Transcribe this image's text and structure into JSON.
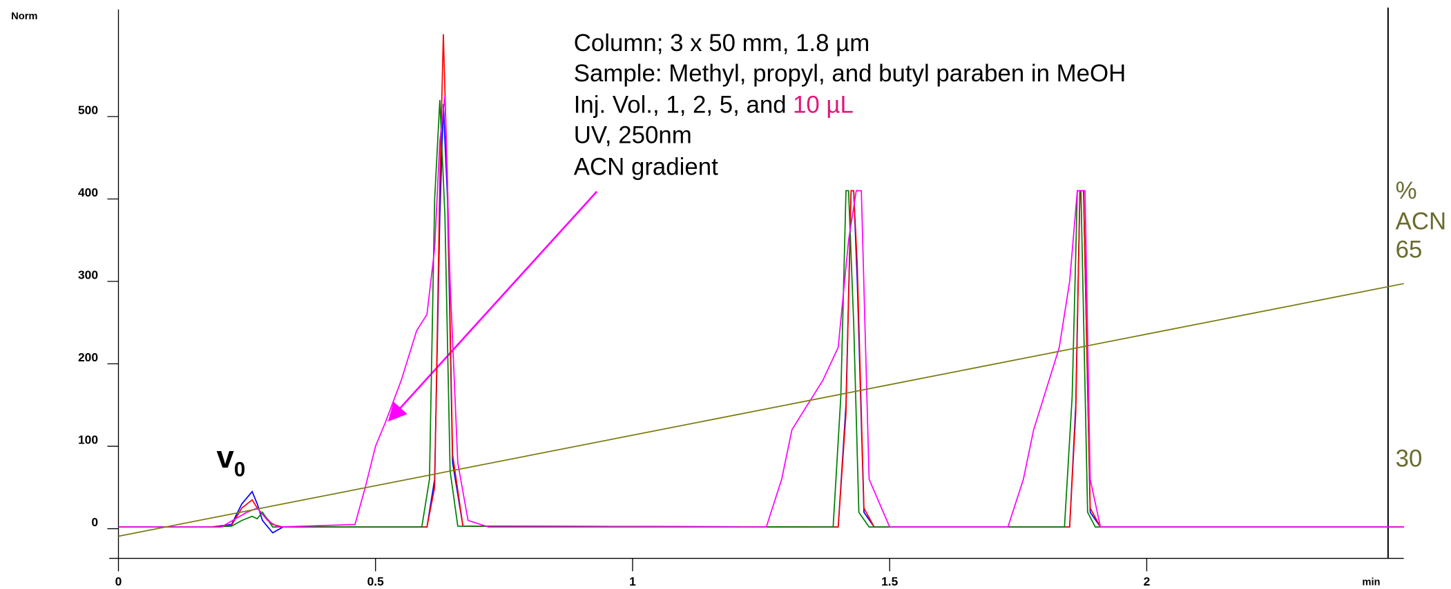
{
  "chart_data": {
    "type": "line",
    "y_label": "Norm",
    "x_label": "min",
    "annotation_lines": [
      "Column; 3 x 50 mm, 1.8 µm",
      "Sample: Methyl, propyl, and butyl paraben in MeOH",
      "Inj. Vol., 1, 2, 5, and",
      "UV, 250nm",
      "ACN gradient"
    ],
    "annotation_highlight": "10 µL",
    "annotation_highlight_color": "#e0187a",
    "v0_label": {
      "text": "v",
      "sub": "0"
    },
    "y2_label_lines": [
      "%",
      "ACN"
    ],
    "xlim": [
      0,
      2.5
    ],
    "xticks": [
      0,
      0.5,
      1,
      1.5,
      2
    ],
    "ylim": [
      -36,
      630
    ],
    "yticks": [
      0,
      100,
      200,
      300,
      400,
      500
    ],
    "y2lim": [
      13.6,
      105.5
    ],
    "y2ticks": [
      30,
      65
    ],
    "y2_color": "#6b6b2e",
    "series": [
      {
        "name": "Blue trace",
        "color": "#0000ff",
        "x": [
          0,
          0.18,
          0.22,
          0.24,
          0.26,
          0.27,
          0.28,
          0.3,
          0.32,
          0.6,
          0.615,
          0.625,
          0.632,
          0.64,
          0.65,
          0.67,
          1.4,
          1.415,
          1.425,
          1.43,
          1.437,
          1.45,
          1.47,
          1.85,
          1.862,
          1.87,
          1.877,
          1.89,
          1.91,
          2.5
        ],
        "values": [
          2,
          2,
          5,
          30,
          45,
          30,
          10,
          -5,
          2,
          2,
          60,
          380,
          515,
          400,
          80,
          3,
          2,
          150,
          410,
          410,
          300,
          20,
          2,
          2,
          150,
          410,
          410,
          20,
          2,
          2
        ]
      },
      {
        "name": "Red trace",
        "color": "#ff0000",
        "x": [
          0,
          0.18,
          0.22,
          0.24,
          0.26,
          0.27,
          0.28,
          0.3,
          0.32,
          0.6,
          0.615,
          0.625,
          0.632,
          0.64,
          0.65,
          0.67,
          1.4,
          1.415,
          1.425,
          1.43,
          1.437,
          1.45,
          1.47,
          1.85,
          1.862,
          1.87,
          1.877,
          1.89,
          1.91,
          2.5
        ],
        "values": [
          2,
          2,
          4,
          25,
          35,
          25,
          18,
          5,
          2,
          2,
          50,
          420,
          600,
          420,
          90,
          3,
          2,
          140,
          410,
          410,
          320,
          25,
          2,
          2,
          140,
          410,
          410,
          25,
          2,
          2
        ]
      },
      {
        "name": "Green trace",
        "color": "#008000",
        "x": [
          0,
          0.18,
          0.22,
          0.24,
          0.26,
          0.27,
          0.28,
          0.3,
          0.32,
          0.59,
          0.605,
          0.615,
          0.625,
          0.635,
          0.645,
          0.66,
          1.39,
          1.405,
          1.415,
          1.42,
          1.43,
          1.44,
          1.46,
          1.84,
          1.855,
          1.865,
          1.872,
          1.885,
          1.9,
          2.5
        ],
        "values": [
          2,
          2,
          3,
          10,
          15,
          12,
          20,
          2,
          2,
          2,
          60,
          400,
          520,
          380,
          70,
          3,
          2,
          160,
          410,
          410,
          250,
          20,
          2,
          2,
          160,
          410,
          410,
          20,
          2,
          2
        ]
      },
      {
        "name": "Magenta trace",
        "color": "#ff00ff",
        "x": [
          0,
          0.2,
          0.25,
          0.27,
          0.29,
          0.31,
          0.46,
          0.48,
          0.5,
          0.52,
          0.55,
          0.58,
          0.6,
          0.615,
          0.625,
          0.635,
          0.645,
          0.66,
          0.68,
          0.72,
          1.26,
          1.29,
          1.31,
          1.33,
          1.37,
          1.4,
          1.42,
          1.435,
          1.445,
          1.46,
          1.5,
          1.73,
          1.76,
          1.78,
          1.8,
          1.83,
          1.85,
          1.865,
          1.88,
          1.89,
          1.91,
          2.5
        ],
        "values": [
          2,
          2,
          20,
          25,
          10,
          2,
          5,
          50,
          100,
          130,
          180,
          240,
          260,
          340,
          470,
          525,
          300,
          80,
          10,
          2,
          2,
          60,
          120,
          140,
          180,
          220,
          350,
          410,
          410,
          60,
          2,
          2,
          60,
          120,
          160,
          220,
          300,
          410,
          410,
          60,
          2,
          2
        ]
      },
      {
        "name": "ACN gradient",
        "color": "#7a7a10",
        "axis": "y2",
        "x": [
          0,
          2.5
        ],
        "values": [
          17.3,
          59.6
        ]
      }
    ]
  }
}
